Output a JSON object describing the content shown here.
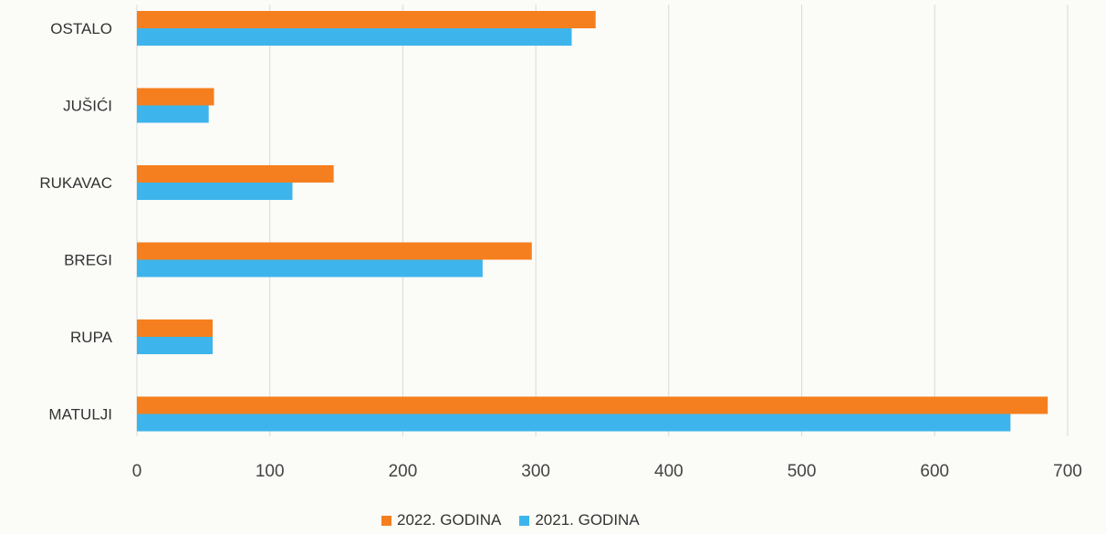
{
  "chart_data": {
    "type": "bar",
    "orientation": "horizontal",
    "categories": [
      "OSTALO",
      "JUŠIĆI",
      "RUKAVAC",
      "BREGI",
      "RUPA",
      "MATULJI"
    ],
    "series": [
      {
        "name": "2022. GODINA",
        "color": "#f57f1e",
        "values": [
          345,
          58,
          148,
          297,
          57,
          685
        ]
      },
      {
        "name": "2021. GODINA",
        "color": "#3db5ec",
        "values": [
          327,
          54,
          117,
          260,
          57,
          657
        ]
      }
    ],
    "xlim": [
      0,
      700
    ],
    "xticks": [
      "0",
      "100",
      "200",
      "300",
      "400",
      "500",
      "600",
      "700"
    ],
    "xtick_values": [
      0,
      100,
      200,
      300,
      400,
      500,
      600,
      700
    ],
    "grid": true,
    "legend_position": "bottom"
  }
}
